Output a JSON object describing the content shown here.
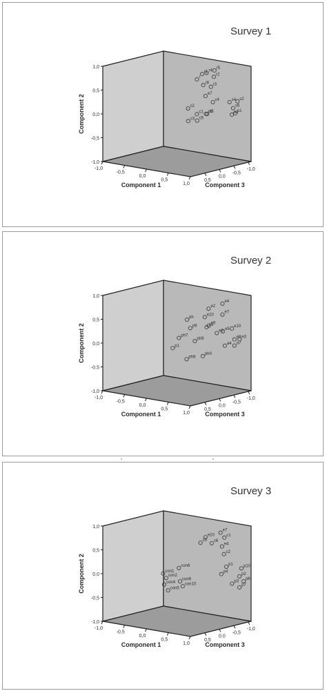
{
  "colors": {
    "border": "#9a9a9a",
    "back_wall": "#cfcfcf",
    "side_wall": "#b9b9b9",
    "floor": "#9c9c9c",
    "edge": "#1e1e1e",
    "text": "#2a2a2a",
    "marker": "#333333"
  },
  "chart_data": [
    {
      "type": "scatter",
      "title": "Survey 1",
      "xlabel": "Component 1",
      "ylabel": "Component 2",
      "zlabel": "Component 3",
      "xlim": [
        -1.0,
        1.0
      ],
      "ylim": [
        -1.0,
        1.0
      ],
      "zlim": [
        -1.0,
        1.0
      ],
      "y_ticks": [
        "1,0",
        "0,5",
        "0,0",
        "-0,5",
        "-1,0"
      ],
      "x_ticks": [
        "-1,0",
        "-0,5",
        "0,0",
        "0,5",
        "1,0"
      ],
      "z_ticks": [
        "0,5",
        "0,0",
        "-0,5",
        "-1,0"
      ],
      "points": [
        {
          "label": "r4",
          "x": 0.47,
          "y": 0.89,
          "z": 0.3
        },
        {
          "label": "r5",
          "x": 0.55,
          "y": 0.93,
          "z": 0.44
        },
        {
          "label": "r1",
          "x": 0.4,
          "y": 0.86,
          "z": 0.25
        },
        {
          "label": "r2",
          "x": 0.58,
          "y": 0.81,
          "z": 0.38
        },
        {
          "label": "r",
          "x": 0.31,
          "y": 0.74,
          "z": 0.21
        },
        {
          "label": "r8",
          "x": 0.42,
          "y": 0.63,
          "z": 0.26
        },
        {
          "label": "r3",
          "x": 0.54,
          "y": 0.6,
          "z": 0.34
        },
        {
          "label": "e7",
          "x": 0.45,
          "y": 0.4,
          "z": 0.29
        },
        {
          "label": "c4",
          "x": 0.57,
          "y": 0.28,
          "z": 0.36
        },
        {
          "label": "c2",
          "x": 0.19,
          "y": 0.13,
          "z": 0.09
        },
        {
          "label": "c1",
          "x": 0.31,
          "y": 0.01,
          "z": 0.21
        },
        {
          "label": "c6",
          "x": 0.47,
          "y": 0.03,
          "z": 0.28
        },
        {
          "label": "s5",
          "x": 0.51,
          "y": 0.04,
          "z": 0.26
        },
        {
          "label": "c5",
          "x": 0.3,
          "y": -0.13,
          "z": 0.23
        },
        {
          "label": "c3",
          "x": 0.18,
          "y": -0.14,
          "z": 0.11
        },
        {
          "label": "s4",
          "x": 0.84,
          "y": 0.3,
          "z": 0.52
        },
        {
          "label": "s2",
          "x": 0.96,
          "y": 0.32,
          "z": 0.61
        },
        {
          "label": "s6",
          "x": 0.88,
          "y": 0.17,
          "z": 0.58
        },
        {
          "label": "s3",
          "x": 0.83,
          "y": 0.02,
          "z": 0.61
        },
        {
          "label": "s1",
          "x": 0.93,
          "y": 0.07,
          "z": 0.58
        }
      ]
    },
    {
      "type": "scatter",
      "title": "Survey 2",
      "xlabel": "Component 1",
      "ylabel": "Component 2",
      "zlabel": "Component 3",
      "xlim": [
        -1.0,
        1.0
      ],
      "ylim": [
        -1.0,
        1.0
      ],
      "zlim": [
        -1.0,
        1.0
      ],
      "y_ticks": [
        "1,0",
        "0,5",
        "0,0",
        "-0,5",
        "-1,0"
      ],
      "x_ticks": [
        "-1,0",
        "-0,5",
        "0,0",
        "0,5",
        "1,0"
      ],
      "z_ticks": [
        "0,5",
        "0,0",
        "-0,5",
        "-1,0"
      ],
      "points": [
        {
          "label": "e4",
          "x": 0.72,
          "y": 0.87,
          "z": 0.46
        },
        {
          "label": "e2",
          "x": 0.5,
          "y": 0.75,
          "z": 0.32
        },
        {
          "label": "e7",
          "x": 0.72,
          "y": 0.64,
          "z": 0.46
        },
        {
          "label": "e10",
          "x": 0.44,
          "y": 0.57,
          "z": 0.28
        },
        {
          "label": "ph",
          "x": 0.16,
          "y": 0.5,
          "z": 0.1
        },
        {
          "label": "a8",
          "x": 0.47,
          "y": 0.36,
          "z": 0.3
        },
        {
          "label": "p9",
          "x": 0.22,
          "y": 0.33,
          "z": 0.12
        },
        {
          "label": "e9",
          "x": 0.51,
          "y": 0.4,
          "z": 0.31
        },
        {
          "label": "e5",
          "x": 0.73,
          "y": 0.29,
          "z": 0.46
        },
        {
          "label": "e6",
          "x": 0.64,
          "y": 0.25,
          "z": 0.39
        },
        {
          "label": "e10",
          "x": 0.88,
          "y": 0.36,
          "z": 0.54
        },
        {
          "label": "e8",
          "x": 0.91,
          "y": 0.13,
          "z": 0.58
        },
        {
          "label": "e3",
          "x": 1.0,
          "y": 0.14,
          "z": 0.62
        },
        {
          "label": "a4",
          "x": 0.76,
          "y": -0.01,
          "z": 0.48
        },
        {
          "label": "a7",
          "x": 0.91,
          "y": 0.0,
          "z": 0.58
        },
        {
          "label": "ph7",
          "x": 0.03,
          "y": 0.11,
          "z": 0.02
        },
        {
          "label": "ph9",
          "x": 0.29,
          "y": 0.06,
          "z": 0.17
        },
        {
          "label": "p1",
          "x": -0.07,
          "y": -0.11,
          "z": -0.04
        },
        {
          "label": "ph8",
          "x": 0.15,
          "y": -0.33,
          "z": 0.1
        },
        {
          "label": "ph0",
          "x": 0.41,
          "y": -0.25,
          "z": 0.26
        }
      ]
    },
    {
      "type": "scatter",
      "title": "Survey 3",
      "xlabel": "Component 1",
      "ylabel": "Component 2",
      "zlabel": "Component 3",
      "xlim": [
        -1.0,
        1.0
      ],
      "ylim": [
        -1.0,
        1.0
      ],
      "zlim": [
        -1.0,
        1.0
      ],
      "y_ticks": [
        "1,0",
        "0,5",
        "0,0",
        "-0,5",
        "-1,0"
      ],
      "x_ticks": [
        "-1,0",
        "-0,5",
        "0,0",
        "0,5",
        "1,0"
      ],
      "z_ticks": [
        "0,5",
        "0,0",
        "-0,5",
        "-1,0"
      ],
      "points": [
        {
          "label": "e7",
          "x": 0.69,
          "y": 0.9,
          "z": 0.44
        },
        {
          "label": "e10",
          "x": 0.45,
          "y": 0.79,
          "z": 0.29
        },
        {
          "label": "c1",
          "x": 0.75,
          "y": 0.8,
          "z": 0.48
        },
        {
          "label": "c3",
          "x": 0.37,
          "y": 0.67,
          "z": 0.24
        },
        {
          "label": "c6",
          "x": 0.55,
          "y": 0.67,
          "z": 0.35
        },
        {
          "label": "e4",
          "x": 0.71,
          "y": 0.61,
          "z": 0.46
        },
        {
          "label": "c2",
          "x": 0.74,
          "y": 0.45,
          "z": 0.48
        },
        {
          "label": "p1",
          "x": 0.78,
          "y": 0.19,
          "z": 0.5
        },
        {
          "label": "p10",
          "x": 1.02,
          "y": 0.17,
          "z": 0.65
        },
        {
          "label": "p4",
          "x": 0.7,
          "y": 0.03,
          "z": 0.45
        },
        {
          "label": "p2",
          "x": 0.99,
          "y": 0.0,
          "z": 0.63
        },
        {
          "label": "p6",
          "x": 1.05,
          "y": -0.1,
          "z": 0.68
        },
        {
          "label": "p3",
          "x": 0.87,
          "y": -0.16,
          "z": 0.56
        },
        {
          "label": "p7",
          "x": 0.99,
          "y": -0.23,
          "z": 0.63
        },
        {
          "label": "con6",
          "x": 0.03,
          "y": 0.12,
          "z": 0.02
        },
        {
          "label": "con1",
          "x": -0.22,
          "y": -0.01,
          "z": -0.14
        },
        {
          "label": "con2",
          "x": -0.17,
          "y": -0.1,
          "z": -0.11
        },
        {
          "label": "con9",
          "x": 0.05,
          "y": -0.16,
          "z": 0.03
        },
        {
          "label": "con4",
          "x": -0.2,
          "y": -0.24,
          "z": -0.13
        },
        {
          "label": "con10",
          "x": 0.09,
          "y": -0.26,
          "z": 0.06
        },
        {
          "label": "con5",
          "x": -0.14,
          "y": -0.36,
          "z": -0.09
        }
      ]
    }
  ]
}
